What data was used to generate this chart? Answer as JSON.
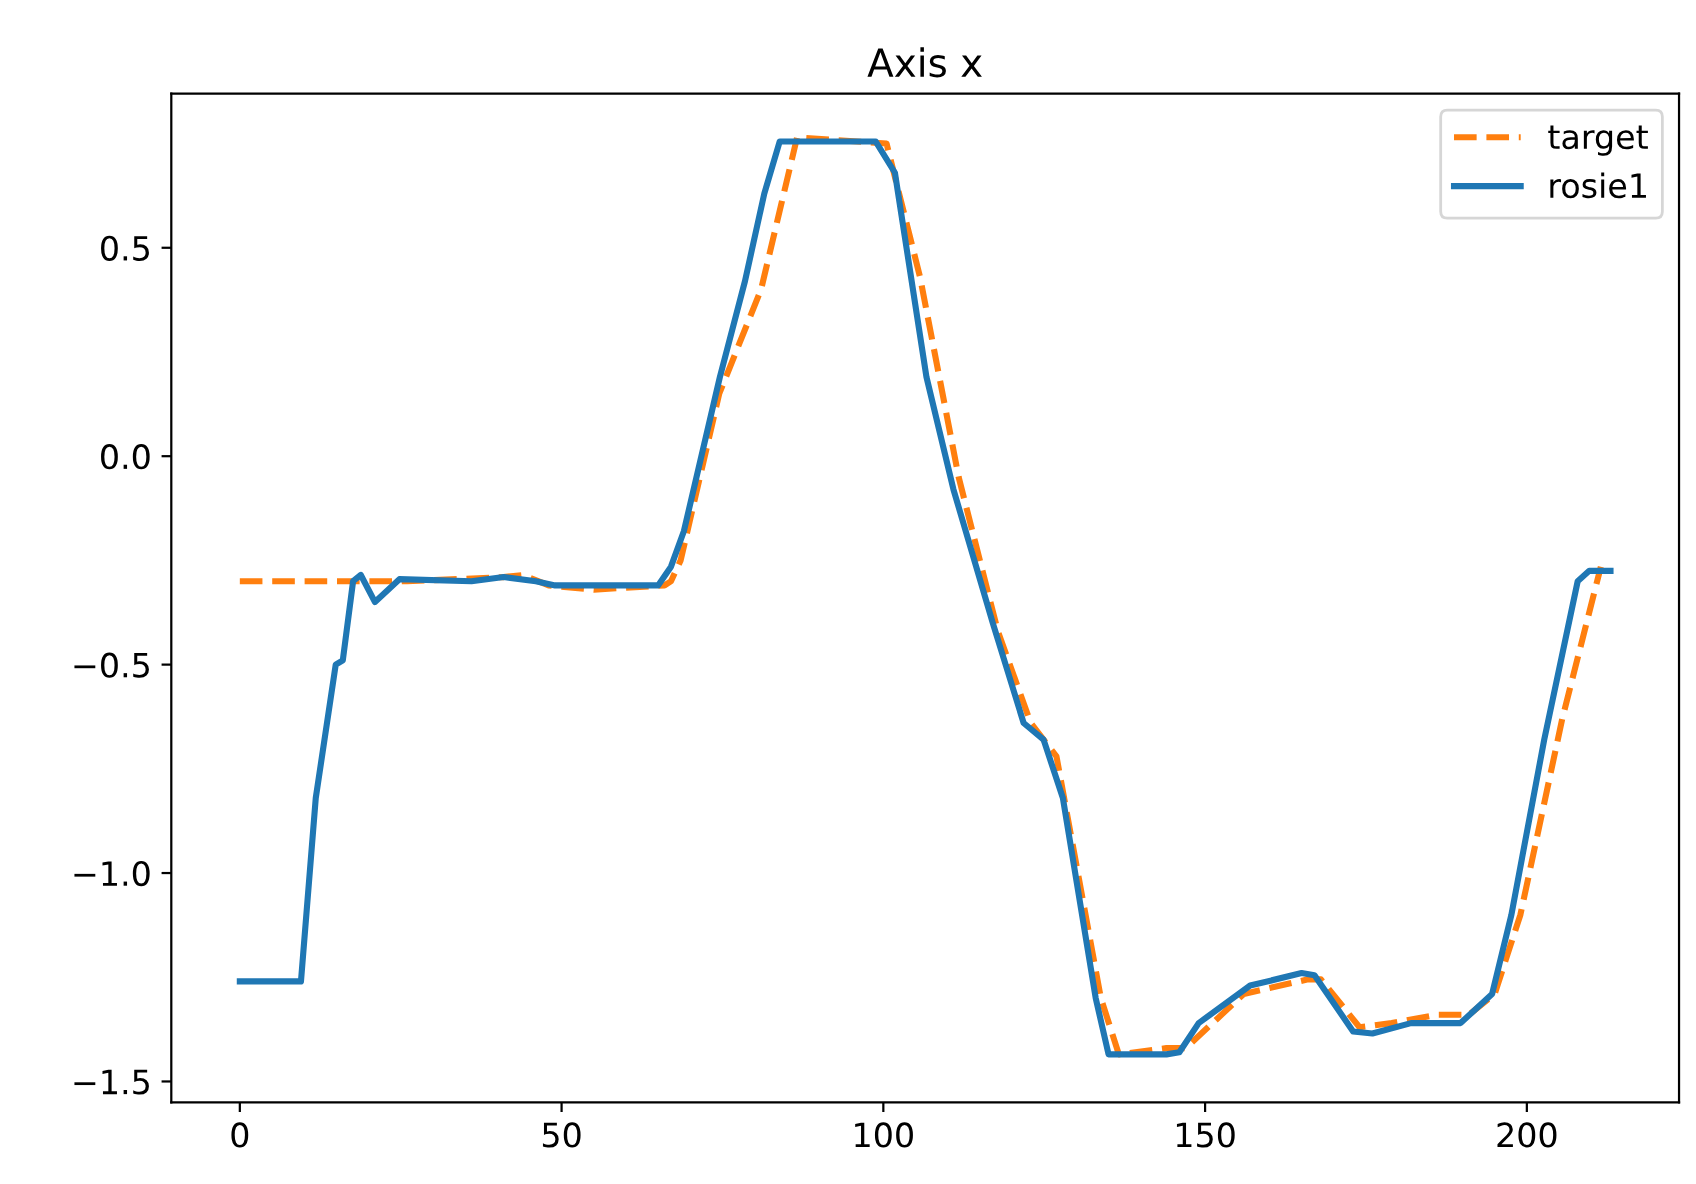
{
  "chart_data": {
    "type": "line",
    "title": "Axis x",
    "xlim": [
      -10.65,
      223.65
    ],
    "xticks": [
      0,
      50,
      100,
      150,
      200
    ],
    "ylim": [
      -1.55,
      0.87
    ],
    "yticks": [
      {
        "value": -1.5,
        "label": "−1.5"
      },
      {
        "value": -1.0,
        "label": "−1.0"
      },
      {
        "value": -0.5,
        "label": "−0.5"
      },
      {
        "value": 0.0,
        "label": "0.0"
      },
      {
        "value": 0.5,
        "label": "0.5"
      }
    ],
    "grid": false,
    "legend": "top right",
    "series": [
      {
        "name": "target",
        "color": "#ff7f0e",
        "line_style": "dashed",
        "x": [
          0,
          19,
          22,
          26,
          41,
          44,
          48,
          55,
          66,
          67,
          68.5,
          74.5,
          81,
          86.6,
          100.5,
          105.7,
          111.7,
          117.8,
          122.9,
          126.9,
          133.8,
          136.6,
          144,
          147,
          156,
          166,
          168,
          174,
          179,
          186,
          191,
          195,
          199,
          205.5,
          211.5
        ],
        "values": [
          -0.3,
          -0.3,
          -0.3,
          -0.3,
          -0.29,
          -0.285,
          -0.31,
          -0.32,
          -0.31,
          -0.3,
          -0.25,
          0.15,
          0.4,
          0.765,
          0.75,
          0.43,
          -0.05,
          -0.42,
          -0.64,
          -0.72,
          -1.3,
          -1.435,
          -1.42,
          -1.42,
          -1.29,
          -1.255,
          -1.255,
          -1.37,
          -1.36,
          -1.34,
          -1.34,
          -1.29,
          -1.1,
          -0.63,
          -0.265
        ]
      },
      {
        "name": "rosie1",
        "color": "#1f77b4",
        "line_style": "solid",
        "x": [
          0,
          9.5,
          11.8,
          14.9,
          16,
          17.6,
          18.8,
          21,
          24.8,
          36,
          41,
          46,
          49,
          65,
          67,
          69,
          74.6,
          78.5,
          81.5,
          83.9,
          98.8,
          101.8,
          106.7,
          110.9,
          117,
          121.8,
          124.9,
          127.9,
          133,
          135,
          144,
          146,
          149,
          157,
          165,
          167,
          173,
          176,
          182,
          189.7,
          194.6,
          197.6,
          202.7,
          207.9,
          209.7,
          213
        ],
        "values": [
          -1.26,
          -1.26,
          -0.82,
          -0.5,
          -0.49,
          -0.3,
          -0.285,
          -0.35,
          -0.295,
          -0.3,
          -0.29,
          -0.3,
          -0.31,
          -0.31,
          -0.265,
          -0.18,
          0.19,
          0.42,
          0.63,
          0.755,
          0.755,
          0.68,
          0.19,
          -0.08,
          -0.4,
          -0.64,
          -0.68,
          -0.82,
          -1.3,
          -1.435,
          -1.435,
          -1.43,
          -1.36,
          -1.27,
          -1.24,
          -1.245,
          -1.38,
          -1.385,
          -1.36,
          -1.36,
          -1.29,
          -1.1,
          -0.68,
          -0.3,
          -0.275,
          -0.275
        ]
      }
    ]
  }
}
